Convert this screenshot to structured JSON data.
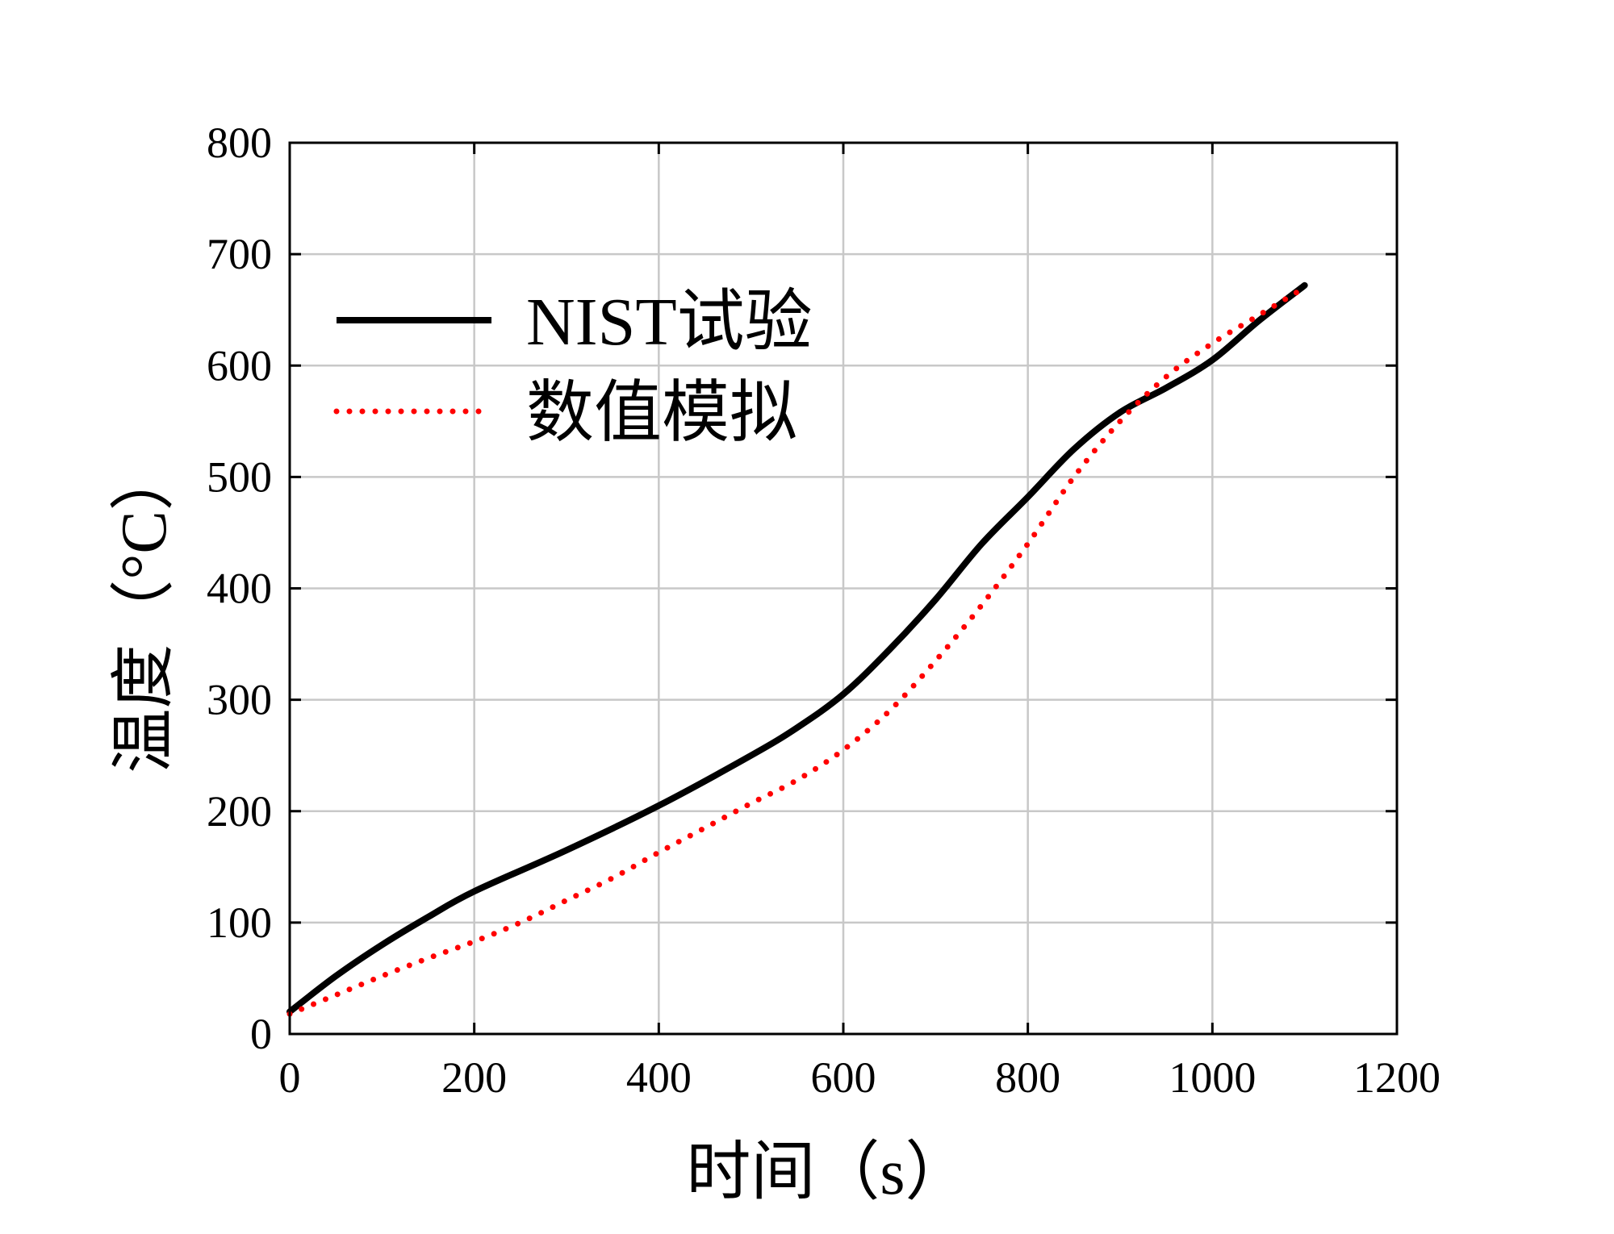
{
  "chart_data": {
    "type": "line",
    "title": "",
    "xlabel": "时间（s）",
    "ylabel": "温度（°C）",
    "xlim": [
      0,
      1200
    ],
    "ylim": [
      0,
      800
    ],
    "xticks": [
      0,
      200,
      400,
      600,
      800,
      1000,
      1200
    ],
    "yticks": [
      0,
      100,
      200,
      300,
      400,
      500,
      600,
      700,
      800
    ],
    "grid": true,
    "legend_position": "top-left",
    "series": [
      {
        "name": "NIST试验",
        "color": "#000000",
        "style": "solid",
        "x": [
          0,
          50,
          100,
          150,
          200,
          300,
          400,
          500,
          550,
          600,
          650,
          700,
          750,
          800,
          850,
          900,
          950,
          1000,
          1050,
          1100
        ],
        "y": [
          20,
          52,
          80,
          105,
          128,
          165,
          205,
          250,
          275,
          305,
          345,
          390,
          440,
          482,
          525,
          558,
          580,
          605,
          640,
          672
        ]
      },
      {
        "name": "数值模拟",
        "color": "#ff0000",
        "style": "dotted",
        "x": [
          0,
          50,
          100,
          150,
          200,
          250,
          300,
          350,
          400,
          450,
          500,
          550,
          600,
          650,
          700,
          750,
          800,
          850,
          900,
          950,
          1000,
          1050,
          1100
        ],
        "y": [
          18,
          35,
          52,
          68,
          83,
          100,
          120,
          140,
          163,
          185,
          207,
          228,
          255,
          290,
          335,
          385,
          440,
          500,
          550,
          590,
          620,
          645,
          670
        ]
      }
    ]
  }
}
